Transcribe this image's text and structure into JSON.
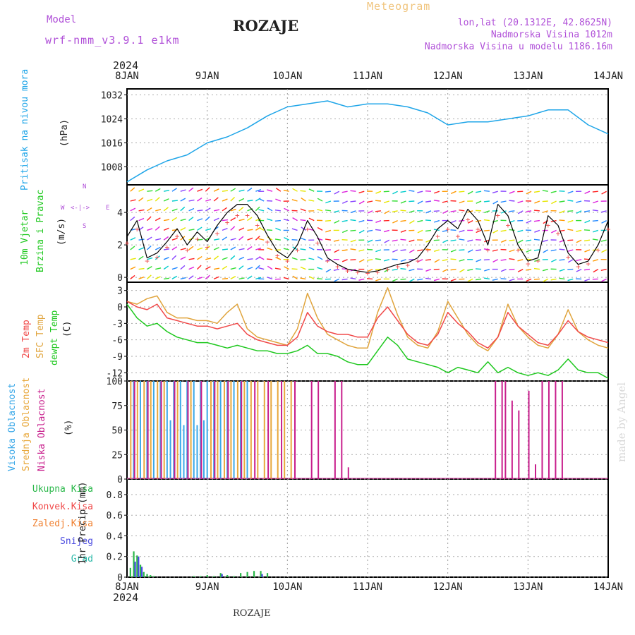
{
  "header": {
    "model_label": "Model",
    "model_name": "wrf-nmm_v3.9.1 e1km",
    "station": "ROZAJE",
    "meteogram": "Meteogram",
    "lonlat": "lon,lat (20.1312E, 42.8625N)",
    "elev": "Nadmorska Visina 1012m",
    "elev_model": "Nadmorska Visina u modelu 1186.16m",
    "credit": "made by Angel",
    "footer_station": "ROZAJE"
  },
  "axis_time": {
    "year_top": "2024",
    "year_bottom": "2024",
    "labels": [
      "8JAN",
      "9JAN",
      "10JAN",
      "11JAN",
      "12JAN",
      "13JAN",
      "14JAN"
    ]
  },
  "colors": {
    "pressure": "#1ea5e8",
    "temp2m": "#f04848",
    "sfc": "#e0a43c",
    "dew": "#1ec81e",
    "high_cloud": "#3aa8e8",
    "mid_cloud": "#e8a83c",
    "low_cloud": "#c81e8c",
    "precip_total": "#2ab84a",
    "snow": "#4a4ae0",
    "grad": "#2ab8a8"
  },
  "panels": {
    "pressure": {
      "ylabel": "Pritisak na nivou mora",
      "unit": "(hPa)",
      "ticks": [
        "1032",
        "1024",
        "1016",
        "1008"
      ]
    },
    "wind": {
      "ylabel1": "10m Vjetar",
      "ylabel2": "Brzina i Pravac",
      "unit": "(m/s)",
      "ticks": [
        "4",
        "2",
        "0"
      ],
      "compass": {
        "n": "N",
        "s": "S",
        "e": "E",
        "w": "W"
      }
    },
    "temp": {
      "label_2m": "2m Temp",
      "label_sfc": "SFC Temp",
      "label_dew": "dewpt Temp",
      "unit": "(C)",
      "ticks": [
        "3",
        "0",
        "-3",
        "-6",
        "-9",
        "-12"
      ]
    },
    "cloud": {
      "label_high": "Visoka Oblacnost",
      "label_mid": "Srednja Oblacnost",
      "label_low": "Niska Oblacnost",
      "unit": "(%)",
      "ticks": [
        "100",
        "75",
        "50",
        "25",
        "0"
      ]
    },
    "precip": {
      "labels": [
        "Ukupna Kisa",
        "Konvek.Kisa",
        "Zaledj.Kisa",
        "Snijeg",
        "Grad"
      ],
      "unit": "1hr Precip (mm)",
      "ticks": [
        "0.8",
        "0.6",
        "0.4",
        "0.2",
        "0"
      ]
    }
  },
  "chart_data": [
    {
      "type": "line",
      "name": "pressure",
      "x_hours": [
        0,
        6,
        12,
        18,
        24,
        30,
        36,
        42,
        48,
        54,
        60,
        66,
        72,
        78,
        84,
        90,
        96,
        102,
        108,
        114,
        120,
        126,
        132,
        138,
        144
      ],
      "series": [
        {
          "values": [
            1003,
            1007,
            1010,
            1012,
            1016,
            1018,
            1021,
            1025,
            1028,
            1029,
            1030,
            1028,
            1029,
            1029,
            1028,
            1026,
            1022,
            1023,
            1023,
            1024,
            1025,
            1027,
            1027,
            1022,
            1019
          ]
        }
      ],
      "ylim": [
        1002,
        1034
      ]
    },
    {
      "type": "line",
      "name": "wind_speed",
      "x_hours": [
        0,
        3,
        6,
        9,
        12,
        15,
        18,
        21,
        24,
        27,
        30,
        33,
        36,
        39,
        42,
        45,
        48,
        51,
        54,
        57,
        60,
        63,
        66,
        69,
        72,
        75,
        78,
        81,
        84,
        87,
        90,
        93,
        96,
        99,
        102,
        105,
        108,
        111,
        114,
        117,
        120,
        123,
        126,
        129,
        132,
        135,
        138,
        141,
        144
      ],
      "series": [
        {
          "values": [
            2.5,
            3.5,
            1.2,
            1.5,
            2.2,
            3.0,
            2.0,
            2.8,
            2.2,
            3.2,
            4.0,
            4.5,
            4.5,
            3.8,
            2.6,
            1.6,
            1.2,
            2.0,
            3.5,
            2.5,
            1.2,
            0.8,
            0.5,
            0.4,
            0.3,
            0.4,
            0.6,
            0.8,
            0.9,
            1.2,
            2.0,
            3.0,
            3.5,
            3.0,
            4.2,
            3.5,
            2.0,
            4.5,
            3.8,
            2.0,
            1.0,
            1.2,
            3.8,
            3.2,
            1.5,
            0.8,
            1.0,
            2.0,
            3.5
          ]
        }
      ],
      "ylim": [
        -0.3,
        5.7
      ]
    },
    {
      "type": "line",
      "name": "temperature",
      "x_hours": [
        0,
        3,
        6,
        9,
        12,
        15,
        18,
        21,
        24,
        27,
        30,
        33,
        36,
        39,
        42,
        45,
        48,
        51,
        54,
        57,
        60,
        63,
        66,
        69,
        72,
        75,
        78,
        81,
        84,
        87,
        90,
        93,
        96,
        99,
        102,
        105,
        108,
        111,
        114,
        117,
        120,
        123,
        126,
        129,
        132,
        135,
        138,
        141,
        144
      ],
      "series": [
        {
          "name": "2m Temp",
          "values": [
            1.0,
            0.0,
            -0.5,
            0.5,
            -2.0,
            -2.5,
            -3.0,
            -3.5,
            -3.5,
            -4.0,
            -3.5,
            -3.0,
            -5.0,
            -6.0,
            -6.5,
            -7.0,
            -7.0,
            -5.5,
            -1.0,
            -3.5,
            -4.5,
            -5.0,
            -5.0,
            -5.5,
            -5.5,
            -2.0,
            0.0,
            -2.5,
            -5.0,
            -6.5,
            -7.0,
            -5.0,
            -1.0,
            -3.0,
            -4.5,
            -6.5,
            -7.5,
            -5.5,
            -1.0,
            -3.5,
            -5.0,
            -6.5,
            -7.0,
            -5.0,
            -2.5,
            -4.5,
            -5.5,
            -6.0,
            -6.5
          ]
        },
        {
          "name": "SFC Temp",
          "values": [
            1.0,
            0.5,
            1.5,
            2.0,
            -1.0,
            -2.0,
            -2.0,
            -2.5,
            -2.5,
            -3.0,
            -1.0,
            0.5,
            -4.0,
            -5.5,
            -6.0,
            -6.5,
            -7.0,
            -4.0,
            2.5,
            -2.0,
            -5.0,
            -6.0,
            -7.0,
            -7.5,
            -7.5,
            -1.0,
            3.5,
            -1.5,
            -5.5,
            -7.0,
            -7.5,
            -4.5,
            1.0,
            -2.0,
            -5.0,
            -7.0,
            -8.0,
            -5.5,
            0.5,
            -3.5,
            -5.5,
            -7.0,
            -7.5,
            -5.0,
            -0.5,
            -4.5,
            -6.0,
            -7.0,
            -7.5
          ]
        },
        {
          "name": "dewpt Temp",
          "values": [
            0.5,
            -2.0,
            -3.5,
            -3.0,
            -4.5,
            -5.5,
            -6.0,
            -6.5,
            -6.5,
            -7.0,
            -7.5,
            -7.0,
            -7.5,
            -8.0,
            -8.0,
            -8.5,
            -8.5,
            -8.0,
            -7.0,
            -8.5,
            -8.5,
            -9.0,
            -10.0,
            -10.5,
            -10.5,
            -8.0,
            -5.5,
            -7.0,
            -9.5,
            -10.0,
            -10.5,
            -11.0,
            -12.0,
            -11.0,
            -11.5,
            -12.0,
            -10.0,
            -12.0,
            -11.0,
            -12.0,
            -12.5,
            -12.0,
            -12.5,
            -11.5,
            -9.5,
            -11.5,
            -12.0,
            -12.0,
            -13.0
          ]
        }
      ],
      "ylim": [
        -13.5,
        4.5
      ]
    },
    {
      "type": "bar",
      "name": "cloud_cover",
      "ylim": [
        0,
        100
      ],
      "series": [
        {
          "name": "Visoka Oblacnost",
          "x_hours": [
            2,
            4,
            6,
            8,
            10,
            12,
            13,
            14,
            16,
            17,
            18,
            20,
            21,
            22,
            23,
            24,
            26,
            28,
            30,
            32,
            34,
            36
          ],
          "values": [
            100,
            100,
            100,
            100,
            100,
            100,
            60,
            100,
            100,
            55,
            100,
            100,
            55,
            100,
            60,
            100,
            100,
            100,
            100,
            100,
            100,
            100
          ]
        },
        {
          "name": "Srednja Oblacnost",
          "x_hours": [
            1,
            3,
            5,
            7,
            9,
            11,
            15,
            19,
            25,
            27,
            29,
            31,
            33,
            35,
            37,
            39,
            41,
            43,
            45,
            47,
            49
          ],
          "values": [
            100,
            100,
            100,
            100,
            100,
            100,
            100,
            100,
            100,
            100,
            100,
            100,
            100,
            100,
            100,
            100,
            100,
            100,
            100,
            100,
            100
          ]
        },
        {
          "name": "Niska Oblacnost",
          "x_hours": [
            2,
            6,
            10,
            14,
            18,
            22,
            26,
            30,
            34,
            38,
            42,
            46,
            50,
            55,
            57,
            62,
            64,
            66,
            110,
            112,
            113,
            115,
            117,
            120,
            122,
            124,
            126,
            128,
            130
          ],
          "values": [
            100,
            100,
            100,
            100,
            100,
            100,
            100,
            100,
            100,
            100,
            100,
            100,
            100,
            100,
            100,
            100,
            100,
            12,
            100,
            100,
            100,
            80,
            70,
            90,
            15,
            100,
            100,
            100,
            100
          ]
        }
      ]
    },
    {
      "type": "bar",
      "name": "precip",
      "ylim": [
        0,
        0.95
      ],
      "series": [
        {
          "name": "Ukupna Kisa",
          "x_hours": [
            1,
            2,
            3,
            4,
            5,
            6,
            7,
            8,
            20,
            22,
            24,
            26,
            28,
            30,
            32,
            34,
            36,
            38,
            40,
            42
          ],
          "values": [
            0.09,
            0.25,
            0.21,
            0.12,
            0.05,
            0.03,
            0.02,
            0.01,
            0.01,
            0.01,
            0.02,
            0.01,
            0.04,
            0.02,
            0.01,
            0.04,
            0.05,
            0.06,
            0.06,
            0.04
          ]
        },
        {
          "name": "Snijeg",
          "x_hours": [
            2,
            3,
            4,
            28,
            40
          ],
          "values": [
            0.15,
            0.2,
            0.1,
            0.03,
            0.03
          ]
        }
      ]
    }
  ]
}
